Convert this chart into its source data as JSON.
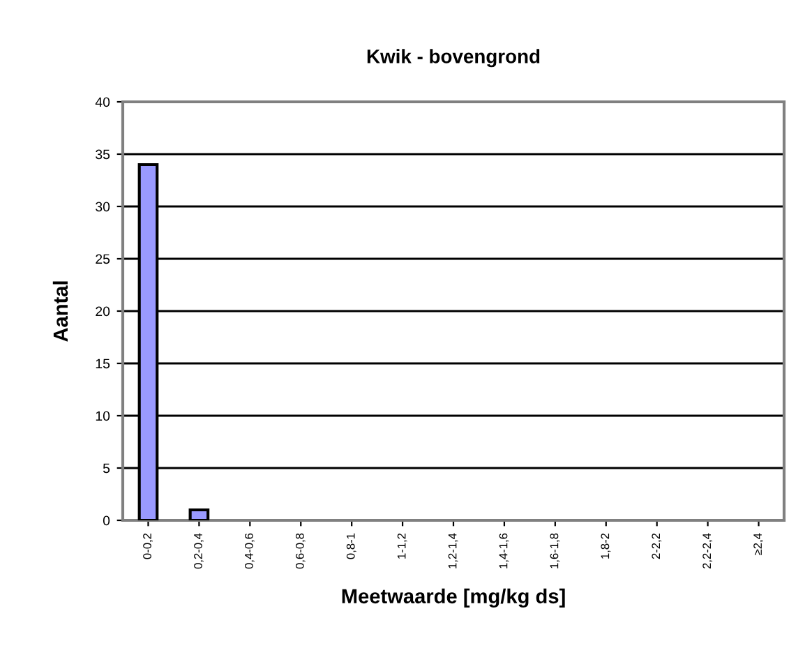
{
  "chart_data": {
    "type": "bar",
    "title": "Kwik - bovengrond",
    "xlabel": "Meetwaarde [mg/kg ds]",
    "ylabel": "Aantal",
    "categories": [
      "0-0,2",
      "0,2-0,4",
      "0,4-0,6",
      "0,6-0,8",
      "0,8-1",
      "1-1,2",
      "1,2-1,4",
      "1,4-1,6",
      "1,6-1,8",
      "1,8-2",
      "2-2,2",
      "2,2-2,4",
      "≥2,4"
    ],
    "values": [
      34,
      1,
      0,
      0,
      0,
      0,
      0,
      0,
      0,
      0,
      0,
      0,
      0
    ],
    "color": "#9999ff",
    "ylim": [
      0,
      40
    ],
    "yticks": [
      0,
      5,
      10,
      15,
      20,
      25,
      30,
      35,
      40
    ],
    "grid": "y"
  }
}
